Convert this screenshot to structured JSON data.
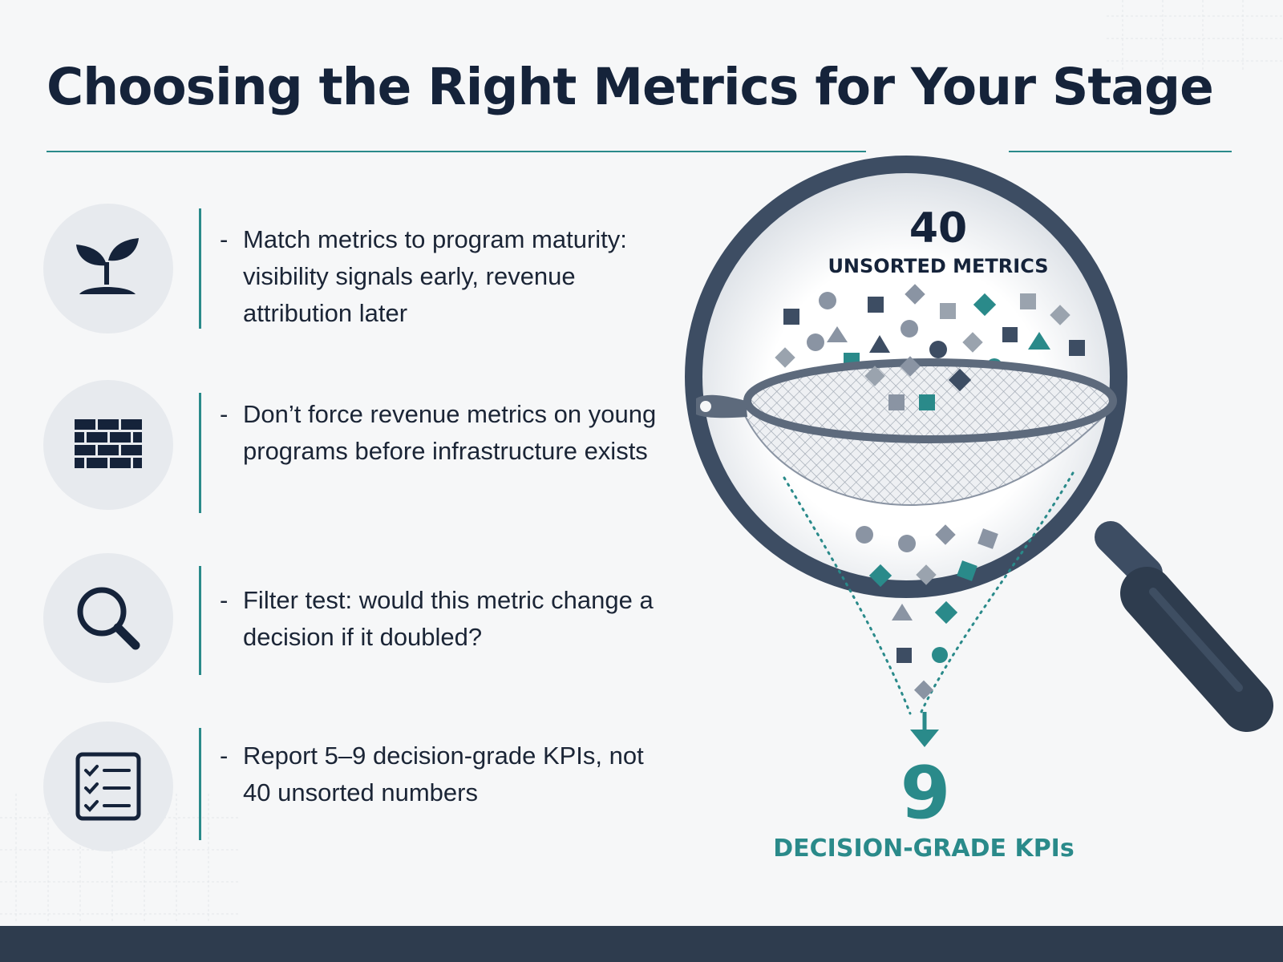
{
  "title": "Choosing the Right Metrics for Your Stage",
  "points": [
    {
      "icon": "sprout-icon",
      "text": "Match metrics to program maturity: visibility signals early, revenue attribution later"
    },
    {
      "icon": "brick-wall-icon",
      "text": "Don’t force revenue metrics on young programs before infrastructure exists"
    },
    {
      "icon": "magnifier-icon",
      "text": "Filter test: would this metric change a decision if it doubled?"
    },
    {
      "icon": "checklist-icon",
      "text": "Report 5–9 decision-grade KPIs, not 40 unsorted numbers"
    }
  ],
  "bullet_marker": "-",
  "illustration": {
    "input_count": "40",
    "input_label": "UNSORTED METRICS",
    "output_count": "9",
    "output_label": "DECISION-GRADE KPIs"
  },
  "colors": {
    "navy": "#15233a",
    "teal": "#2a8a8a",
    "slate": "#3d4d63",
    "gray_icon": "#7d8796",
    "icon_circle": "#e7eaee",
    "footer": "#2e3c4e"
  }
}
